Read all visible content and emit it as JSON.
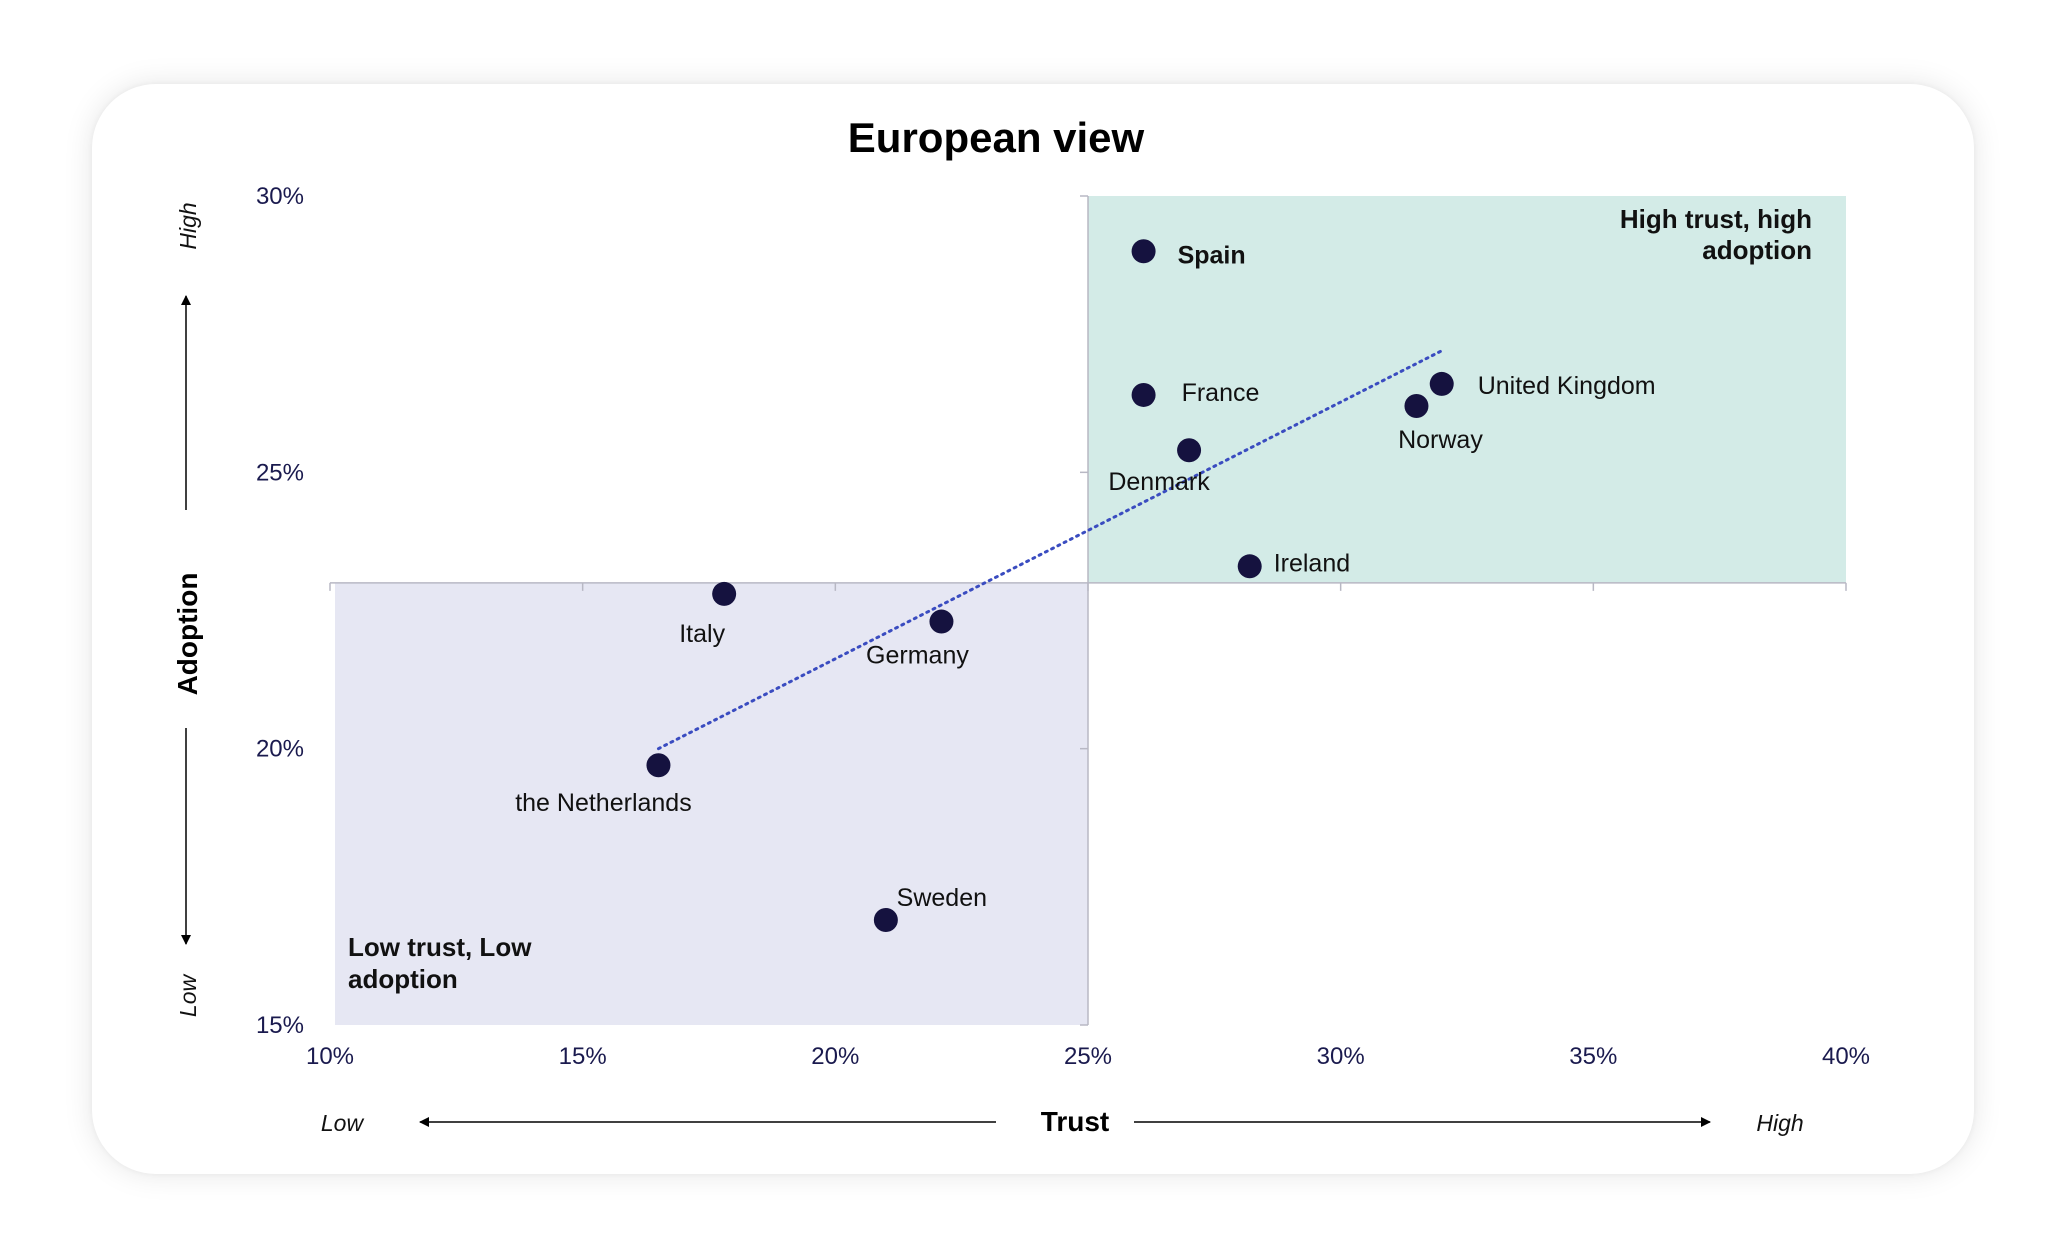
{
  "chart_data": {
    "type": "scatter",
    "title": "European view",
    "xlabel": "Trust",
    "ylabel": "Adoption",
    "x_low_label": "Low",
    "x_high_label": "High",
    "y_low_label": "Low",
    "y_high_label": "High",
    "xlim": [
      10,
      40
    ],
    "ylim": [
      15,
      30
    ],
    "x_ticks": [
      10,
      15,
      20,
      25,
      30,
      35,
      40
    ],
    "y_ticks": [
      15,
      20,
      25,
      30
    ],
    "x_tick_labels": [
      "10%",
      "15%",
      "20%",
      "25%",
      "30%",
      "35%",
      "40%"
    ],
    "y_tick_labels": [
      "15%",
      "20%",
      "25%",
      "30%"
    ],
    "x_divider": 25,
    "y_divider": 23,
    "quadrants": [
      {
        "label_line1": "High trust, high",
        "label_line2": "adoption",
        "color": "#d3ebe7",
        "x_range": [
          25,
          40
        ],
        "y_range": [
          23,
          30
        ]
      },
      {
        "label_line1": "Low trust, Low",
        "label_line2": "adoption",
        "color": "#e6e7f3",
        "x_range": [
          10,
          25
        ],
        "y_range": [
          15,
          23
        ]
      }
    ],
    "points": [
      {
        "name": "Spain",
        "x": 26.1,
        "y": 29.0,
        "bold": true
      },
      {
        "name": "France",
        "x": 26.1,
        "y": 26.4,
        "bold": false
      },
      {
        "name": "United Kingdom",
        "x": 32.0,
        "y": 26.6,
        "bold": false
      },
      {
        "name": "Norway",
        "x": 31.5,
        "y": 26.2,
        "bold": false
      },
      {
        "name": "Denmark",
        "x": 27.0,
        "y": 25.4,
        "bold": false
      },
      {
        "name": "Ireland",
        "x": 28.2,
        "y": 23.3,
        "bold": false
      },
      {
        "name": "Italy",
        "x": 17.8,
        "y": 22.8,
        "bold": false
      },
      {
        "name": "Germany",
        "x": 22.1,
        "y": 22.3,
        "bold": false
      },
      {
        "name": "the Netherlands",
        "x": 16.5,
        "y": 19.7,
        "bold": false
      },
      {
        "name": "Sweden",
        "x": 21.0,
        "y": 16.9,
        "bold": false
      }
    ],
    "trendline": {
      "x": [
        16.5,
        32.0
      ],
      "y": [
        20.0,
        27.2
      ],
      "style": "dotted",
      "color": "#3a4cc0"
    },
    "point_color": "#15123f",
    "grid": false
  }
}
